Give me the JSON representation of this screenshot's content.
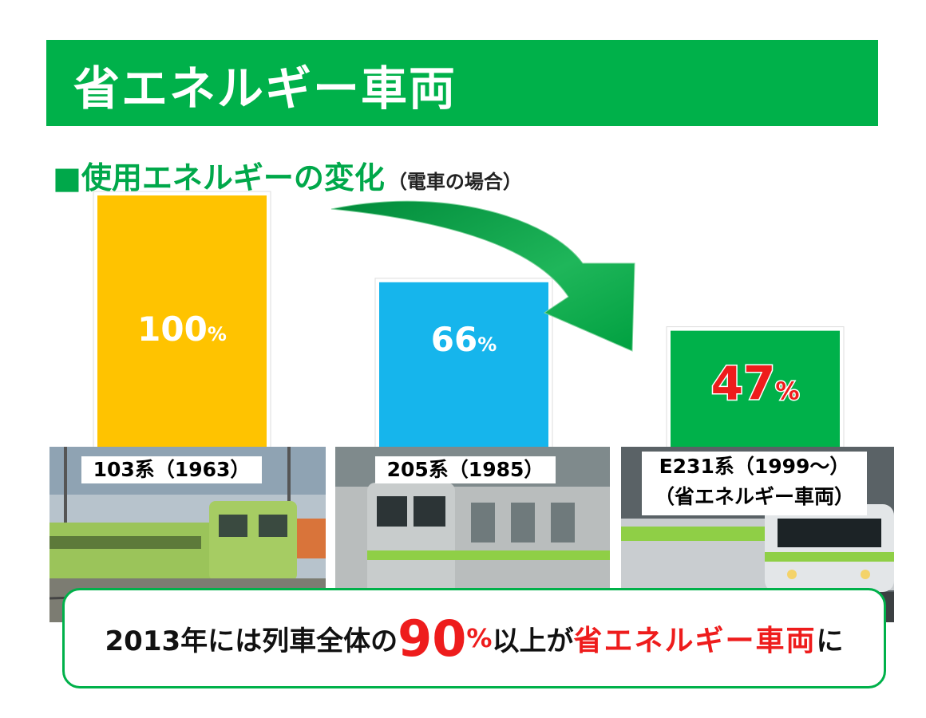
{
  "header": {
    "title": "省エネルギー車両"
  },
  "subtitle": {
    "main": "■使用エネルギーの変化",
    "note": "（電車の場合）"
  },
  "chart_data": {
    "type": "bar",
    "categories": [
      "103系（1963）",
      "205系（1985）",
      "E231系（1999～）（省エネルギー車両）"
    ],
    "values": [
      100,
      66,
      47
    ],
    "unit": "%",
    "value_labels": [
      "100",
      "66",
      "47"
    ],
    "colors": [
      "#ffc300",
      "#16b5ec",
      "#00b14a"
    ],
    "ylim": [
      0,
      100
    ]
  },
  "photos": [
    {
      "caption": "103系（1963）",
      "body_color": "#9bc45a"
    },
    {
      "caption": "205系（1985）",
      "body_color": "#b9bdbd"
    },
    {
      "caption_lines": [
        "E231系（1999～）",
        "（省エネルギー車両）"
      ],
      "body_color": "#c9cdd0"
    }
  ],
  "conclusion": {
    "prefix": "2013年には列車全体の",
    "big_number": "90",
    "pct": "%",
    "middle": "以上が",
    "highlight": "省エネルギー車両",
    "suffix": "に"
  },
  "accent": {
    "green": "#00b14a",
    "red": "#ee1c1c"
  }
}
